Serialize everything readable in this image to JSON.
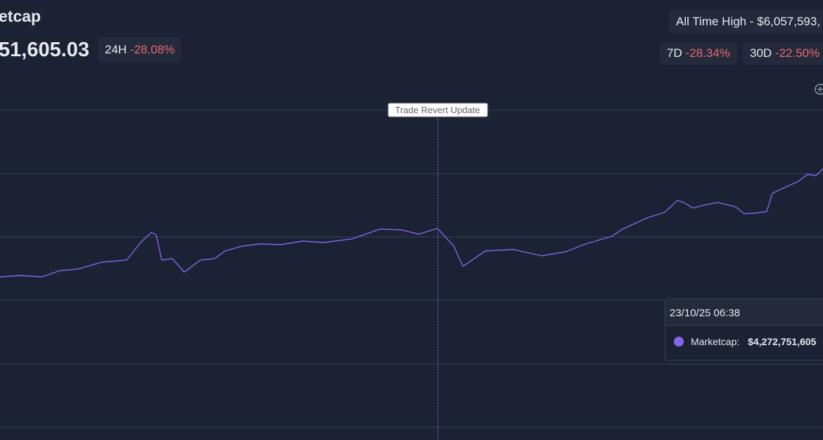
{
  "header": {
    "title": "etcap",
    "value": "51,605.03",
    "change_24h": {
      "label": "24H",
      "value": "-28.08%"
    }
  },
  "stats": {
    "ath": "All Time High - $6,057,593,",
    "change_7d": {
      "label": "7D",
      "value": "-28.34%"
    },
    "change_30d": {
      "label": "30D",
      "value": "-22.50%"
    }
  },
  "chart": {
    "marker": "Trade Revert Update",
    "tooltip": {
      "time": "23/10/25 06:38",
      "label": "Marketcap:",
      "value": "$4,272,751,605"
    }
  }
}
